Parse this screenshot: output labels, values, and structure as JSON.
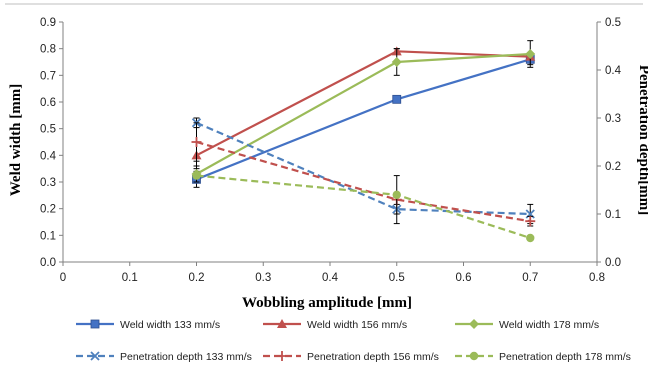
{
  "chart_data": {
    "type": "line",
    "xlabel": "Wobbling amplitude [mm]",
    "ylabel_left": "Weld width [mm]",
    "ylabel_right": "Penetration depth[mm]",
    "x_ticks": [
      "0",
      "0.1",
      "0.2",
      "0.3",
      "0.4",
      "0.5",
      "0.6",
      "0.7",
      "0.8"
    ],
    "y_left_ticks": [
      "0.0",
      "0.1",
      "0.2",
      "0.3",
      "0.4",
      "0.5",
      "0.6",
      "0.7",
      "0.8",
      "0.9"
    ],
    "y_right_ticks": [
      "0.0",
      "0.1",
      "0.2",
      "0.3",
      "0.4",
      "0.5"
    ],
    "xlim": [
      0,
      0.8
    ],
    "ylim_left": [
      0,
      0.9
    ],
    "ylim_right": [
      0,
      0.5
    ],
    "grid": false,
    "legend_position": "bottom",
    "series": [
      {
        "name": "Weld width 133 mm/s",
        "axis": "left",
        "style": "solid",
        "marker": "square",
        "color": "#4472C4",
        "x": [
          0.2,
          0.5,
          0.7
        ],
        "y": [
          0.31,
          0.61,
          0.76
        ],
        "err": [
          0.03,
          0.0,
          0.02
        ]
      },
      {
        "name": "Weld width 156 mm/s",
        "axis": "left",
        "style": "solid",
        "marker": "triangle",
        "color": "#C0504D",
        "x": [
          0.2,
          0.5,
          0.7
        ],
        "y": [
          0.4,
          0.79,
          0.77
        ],
        "err": [
          0.05,
          0.01,
          0.01
        ]
      },
      {
        "name": "Weld width 178 mm/s",
        "axis": "left",
        "style": "solid",
        "marker": "diamond",
        "color": "#9BBB59",
        "x": [
          0.2,
          0.5,
          0.7
        ],
        "y": [
          0.33,
          0.75,
          0.78
        ],
        "err": [
          0.03,
          0.05,
          0.05
        ]
      },
      {
        "name": "Penetration depth 133 mm/s",
        "axis": "right",
        "style": "dashed",
        "marker": "x",
        "color": "#4F81BD",
        "x": [
          0.2,
          0.5,
          0.7
        ],
        "y": [
          0.29,
          0.11,
          0.1
        ],
        "err": [
          0.01,
          0.03,
          0.02
        ]
      },
      {
        "name": "Penetration depth 156 mm/s",
        "axis": "right",
        "style": "dashed",
        "marker": "plus",
        "color": "#C0504D",
        "x": [
          0.2,
          0.5,
          0.7
        ],
        "y": [
          0.25,
          0.13,
          0.085
        ],
        "err": [
          0.04,
          0.01,
          0.01
        ]
      },
      {
        "name": "Penetration depth 178 mm/s",
        "axis": "right",
        "style": "dashed",
        "marker": "circle",
        "color": "#9BBB59",
        "x": [
          0.2,
          0.5,
          0.7
        ],
        "y": [
          0.18,
          0.14,
          0.05
        ],
        "err": [
          0.0,
          0.04,
          0.0
        ]
      }
    ]
  }
}
